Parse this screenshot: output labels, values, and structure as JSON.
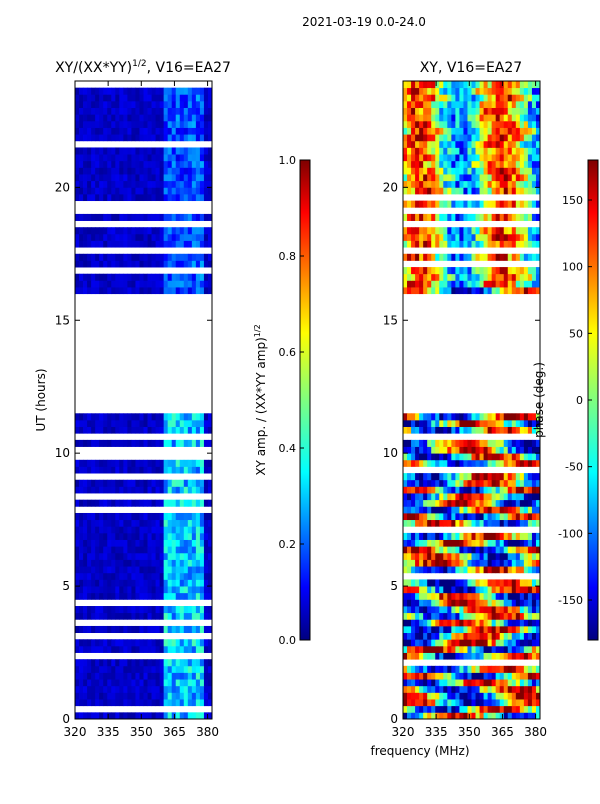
{
  "figure_title": "2021-03-19 0.0-24.0",
  "chart_data": [
    {
      "type": "heatmap",
      "title": "XY/(XX*YY)^1/2, V16=EA27",
      "title_main": "XY/(XX*YY)",
      "title_sup": "1/2",
      "title_tail": ", V16=EA27",
      "xlabel": "frequency (MHz)",
      "ylabel": "UT (hours)",
      "xlim": [
        320,
        382
      ],
      "ylim": [
        0,
        24
      ],
      "xticks": [
        320,
        335,
        350,
        365,
        380
      ],
      "yticks": [
        0,
        5,
        10,
        15,
        20
      ],
      "no_data_hours": [
        11.7,
        16.0
      ],
      "bright_band_mhz": [
        360,
        378
      ],
      "colorbar": {
        "label_main": "XY amp. / (XX*YY amp)",
        "label_sup": "1/2",
        "range": [
          0.0,
          1.0
        ],
        "ticks": [
          "0.0",
          "0.2",
          "0.4",
          "0.6",
          "0.8",
          "1.0"
        ]
      }
    },
    {
      "type": "heatmap",
      "title": "XY, V16=EA27",
      "xlabel": "frequency (MHz)",
      "ylabel": "",
      "xlim": [
        320,
        382
      ],
      "ylim": [
        0,
        24
      ],
      "xticks": [
        320,
        335,
        350,
        365,
        380
      ],
      "yticks": [
        0,
        5,
        10,
        15,
        20
      ],
      "no_data_hours": [
        11.7,
        16.0
      ],
      "colorbar": {
        "label": "phase (deg.)",
        "range": [
          -180,
          180
        ],
        "ticks": [
          "-150",
          "-100",
          "-50",
          "0",
          "50",
          "100",
          "150"
        ]
      }
    }
  ],
  "shared_xlabel": "frequency (MHz)",
  "colors": {
    "jet_low": "#00007f",
    "jet_high": "#7f0000",
    "axis": "#000000"
  }
}
